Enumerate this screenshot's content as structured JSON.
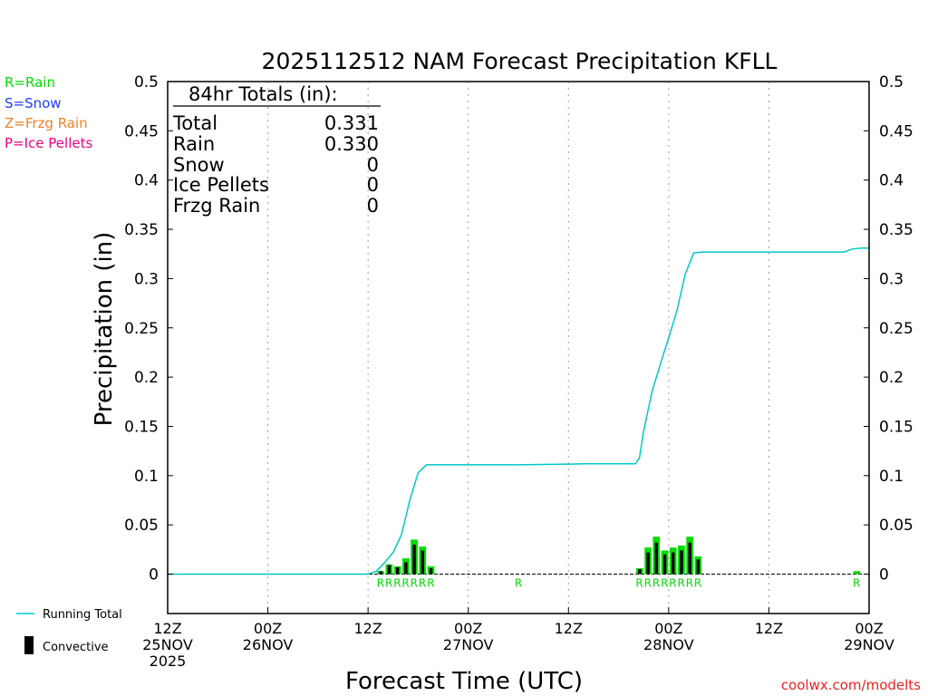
{
  "chart_data": {
    "type": "bar",
    "title": "2025112512 NAM Forecast Precipitation KFLL",
    "xlabel": "Forecast Time (UTC)",
    "ylabel": "Precipitation (in)",
    "ylim": [
      -0.04,
      0.5
    ],
    "xlim": [
      0,
      84
    ],
    "y_ticks": [
      0,
      0.05,
      0.1,
      0.15,
      0.2,
      0.25,
      0.3,
      0.35,
      0.4,
      0.45,
      0.5
    ],
    "y_tick_labels": [
      "0",
      "0.05",
      "0.1",
      "0.15",
      "0.2",
      "0.25",
      "0.3",
      "0.35",
      "0.4",
      "0.45",
      "0.5"
    ],
    "x_ticks": [
      {
        "hour": 0,
        "lines": [
          "12Z",
          "25NOV",
          "2025"
        ]
      },
      {
        "hour": 12,
        "lines": [
          "00Z",
          "26NOV"
        ]
      },
      {
        "hour": 24,
        "lines": [
          "12Z",
          ""
        ]
      },
      {
        "hour": 36,
        "lines": [
          "00Z",
          "27NOV"
        ]
      },
      {
        "hour": 48,
        "lines": [
          "12Z",
          ""
        ]
      },
      {
        "hour": 60,
        "lines": [
          "00Z",
          "28NOV"
        ]
      },
      {
        "hour": 72,
        "lines": [
          "12Z",
          ""
        ]
      },
      {
        "hour": 84,
        "lines": [
          "00Z",
          "29NOV"
        ]
      }
    ],
    "grid_x_hours": [
      12,
      24,
      36,
      48,
      60,
      72
    ],
    "bars": [
      {
        "hour": 25.5,
        "total": 0.003,
        "convective": 0.003
      },
      {
        "hour": 26.5,
        "total": 0.01,
        "convective": 0.009
      },
      {
        "hour": 27.5,
        "total": 0.008,
        "convective": 0.007
      },
      {
        "hour": 28.5,
        "total": 0.016,
        "convective": 0.012
      },
      {
        "hour": 29.5,
        "total": 0.035,
        "convective": 0.03
      },
      {
        "hour": 30.5,
        "total": 0.028,
        "convective": 0.024
      },
      {
        "hour": 31.5,
        "total": 0.008,
        "convective": 0.006
      },
      {
        "hour": 56.5,
        "total": 0.006,
        "convective": 0.005
      },
      {
        "hour": 57.5,
        "total": 0.027,
        "convective": 0.022
      },
      {
        "hour": 58.5,
        "total": 0.038,
        "convective": 0.032
      },
      {
        "hour": 59.5,
        "total": 0.024,
        "convective": 0.02
      },
      {
        "hour": 60.5,
        "total": 0.027,
        "convective": 0.022
      },
      {
        "hour": 61.5,
        "total": 0.029,
        "convective": 0.024
      },
      {
        "hour": 62.5,
        "total": 0.038,
        "convective": 0.032
      },
      {
        "hour": 63.5,
        "total": 0.018,
        "convective": 0.015
      },
      {
        "hour": 82.5,
        "total": 0.003,
        "convective": 0.0
      }
    ],
    "running_total": {
      "hours": [
        0,
        24,
        25,
        26,
        27,
        28,
        29,
        30,
        31,
        32,
        42,
        50,
        56,
        56.5,
        57,
        58,
        59,
        60,
        61,
        62,
        63,
        64,
        80,
        81,
        82,
        83,
        84
      ],
      "values": [
        0,
        0,
        0.003,
        0.012,
        0.022,
        0.04,
        0.075,
        0.103,
        0.111,
        0.111,
        0.111,
        0.112,
        0.112,
        0.118,
        0.145,
        0.185,
        0.213,
        0.24,
        0.268,
        0.305,
        0.326,
        0.327,
        0.327,
        0.327,
        0.33,
        0.331,
        0.331
      ]
    },
    "type_markers": [
      {
        "hour": 25.5,
        "letter": "R"
      },
      {
        "hour": 26.5,
        "letter": "R"
      },
      {
        "hour": 27.5,
        "letter": "R"
      },
      {
        "hour": 28.5,
        "letter": "R"
      },
      {
        "hour": 29.5,
        "letter": "R"
      },
      {
        "hour": 30.5,
        "letter": "R"
      },
      {
        "hour": 31.5,
        "letter": "R"
      },
      {
        "hour": 42,
        "letter": "R"
      },
      {
        "hour": 56.5,
        "letter": "R"
      },
      {
        "hour": 57.5,
        "letter": "R"
      },
      {
        "hour": 58.5,
        "letter": "R"
      },
      {
        "hour": 59.5,
        "letter": "R"
      },
      {
        "hour": 60.5,
        "letter": "R"
      },
      {
        "hour": 61.5,
        "letter": "R"
      },
      {
        "hour": 62.5,
        "letter": "R"
      },
      {
        "hour": 63.5,
        "letter": "R"
      },
      {
        "hour": 82.5,
        "letter": "R"
      }
    ],
    "legend_types": [
      {
        "label": "R=Rain",
        "color": "#00dc00"
      },
      {
        "label": "S=Snow",
        "color": "#1e3cff"
      },
      {
        "label": "Z=Frzg Rain",
        "color": "#f08228"
      },
      {
        "label": "P=Ice Pellets",
        "color": "#f00082"
      }
    ],
    "legend_lines": {
      "running_total_label": "Running Total",
      "convective_label": "Convective"
    },
    "totals_box": {
      "heading": "84hr Totals (in):",
      "rows": [
        {
          "label": "Total",
          "value": "0.331"
        },
        {
          "label": "Rain",
          "value": "0.330"
        },
        {
          "label": "Snow",
          "value": "0"
        },
        {
          "label": "Ice Pellets",
          "value": "0"
        },
        {
          "label": "Frzg Rain",
          "value": "0"
        }
      ]
    },
    "watermark": "coolwx.com/modelts",
    "colors": {
      "rain_bar": "#00dc00",
      "convective": "#000000",
      "running_total": "#00c8c8",
      "watermark": "#f01e1e",
      "axis": "#000000",
      "grid": "#a0a0a0"
    }
  }
}
